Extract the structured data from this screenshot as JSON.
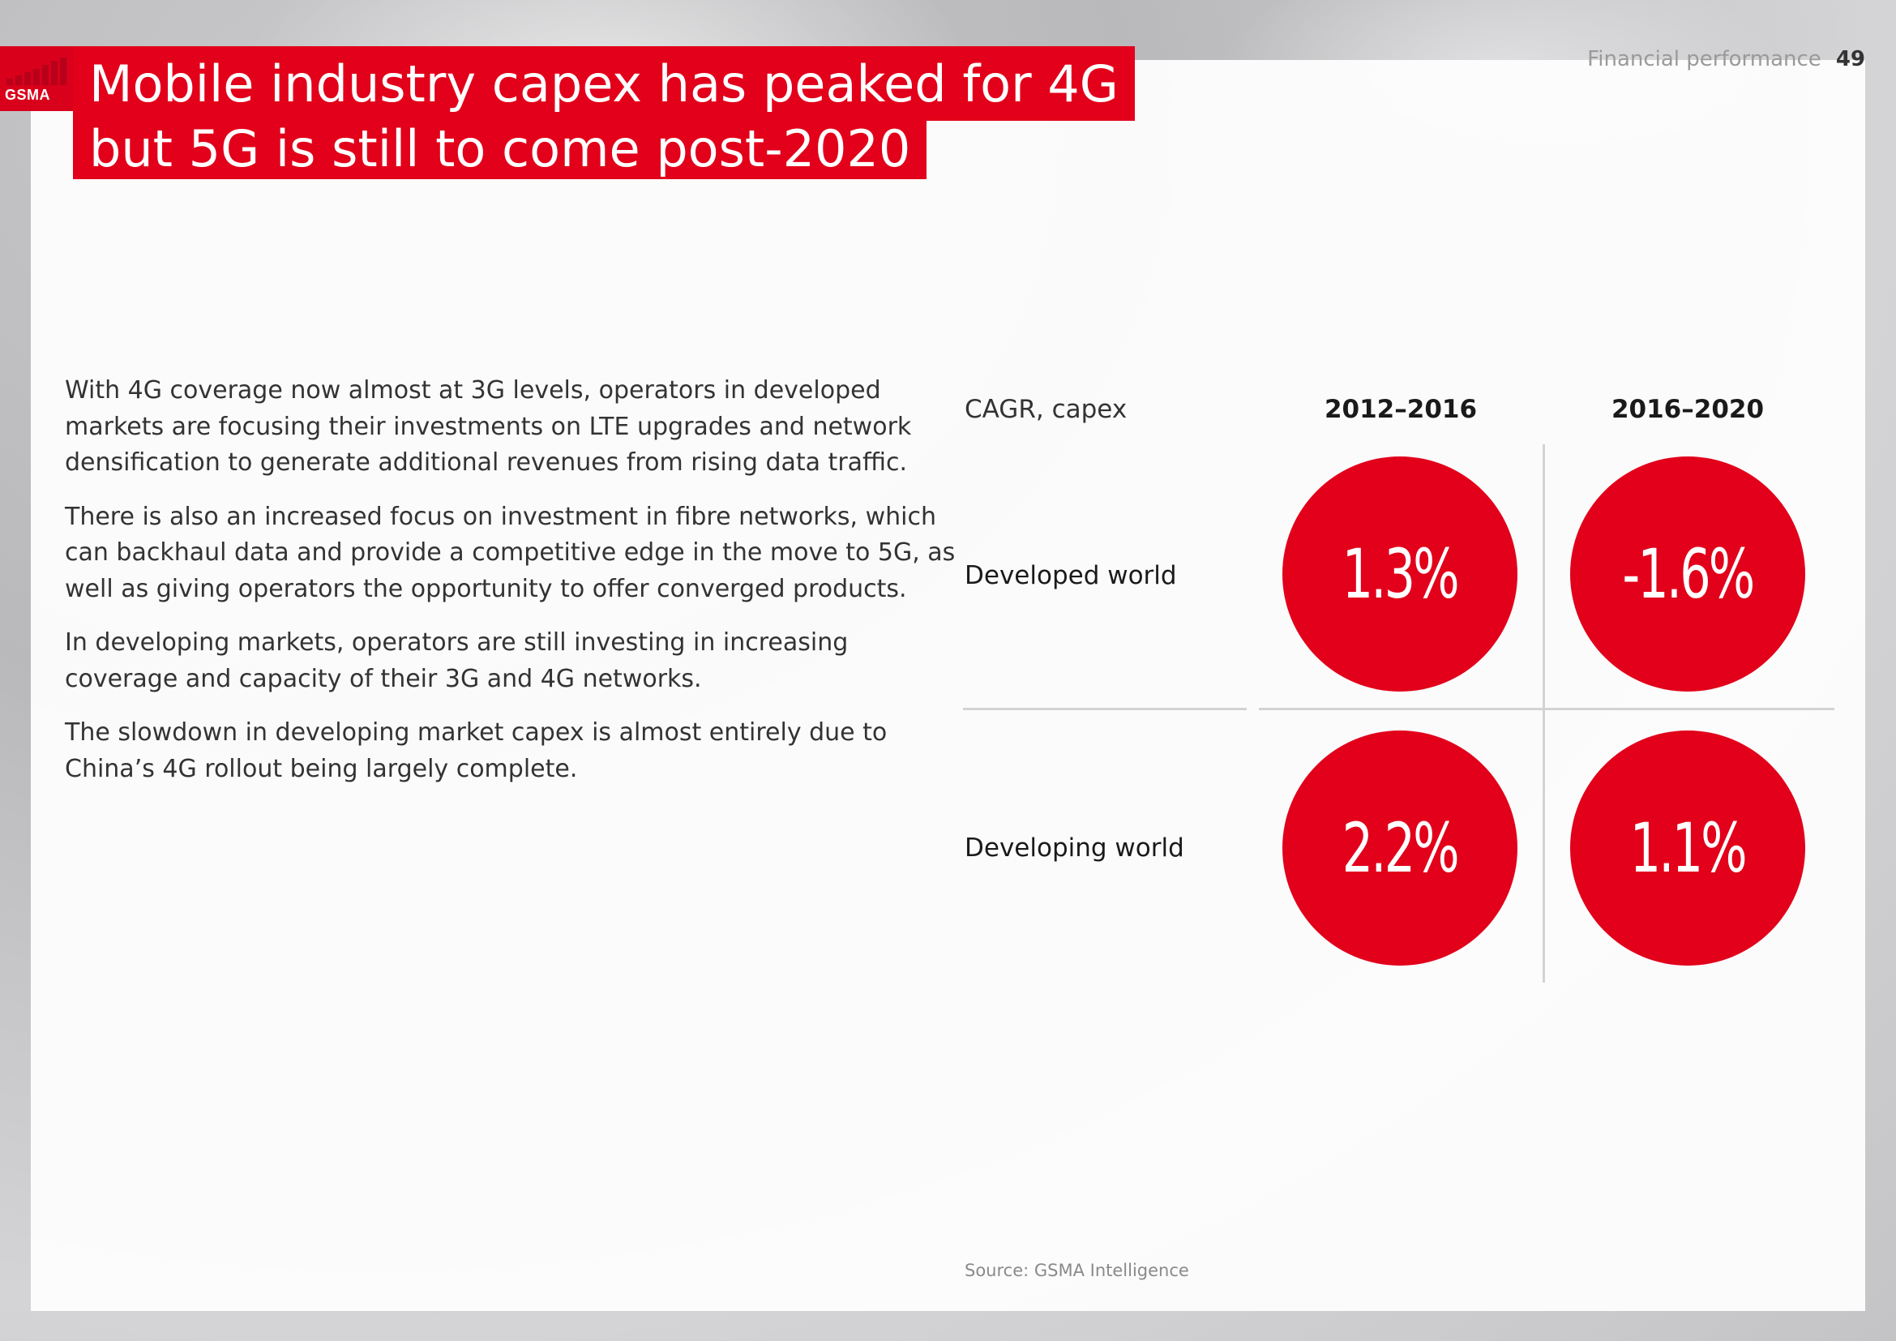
{
  "header": {
    "section": "Financial performance",
    "page_number": "49",
    "logo_text": "GSMA"
  },
  "title": {
    "line1": "Mobile industry capex has peaked for 4G",
    "line2": "but 5G is still to come post-2020"
  },
  "body": {
    "paragraphs": [
      "With 4G coverage now almost at 3G levels, operators in developed markets are focusing their investments on LTE upgrades and network densification to generate additional revenues from rising data traffic.",
      "There is also an increased focus on investment in fibre networks, which can backhaul data and provide a competitive edge in the move to 5G, as well as giving operators the opportunity to offer converged products.",
      "In developing markets, operators are still investing in increasing coverage and capacity of their 3G and 4G networks.",
      "The slowdown in developing market capex is almost entirely due to China’s 4G rollout being largely complete."
    ]
  },
  "chart_data": {
    "type": "table",
    "title": "CAGR, capex",
    "columns": [
      "2012–2016",
      "2016–2020"
    ],
    "rows": [
      {
        "label": "Developed world",
        "values": [
          "1.3%",
          "-1.6%"
        ]
      },
      {
        "label": "Developing world",
        "values": [
          "2.2%",
          "1.1%"
        ]
      }
    ],
    "accent_color": "#e2001a"
  },
  "source": "Source: GSMA Intelligence"
}
